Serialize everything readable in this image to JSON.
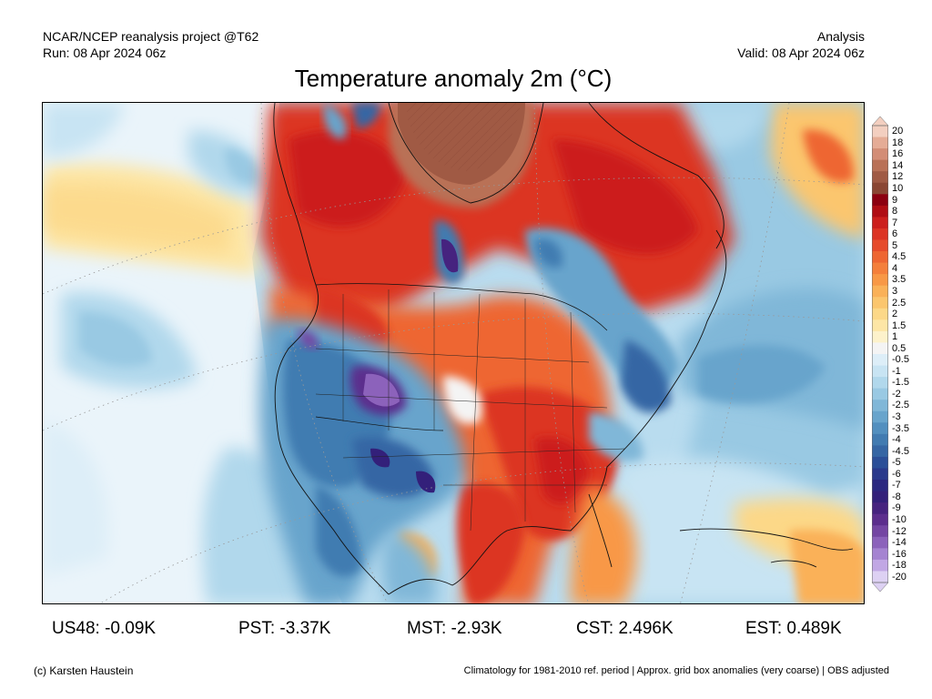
{
  "header": {
    "source_line": "NCAR/NCEP reanalysis project @T62",
    "run_line": "Run: 08 Apr 2024 06z",
    "type_line": "Analysis",
    "valid_line": "Valid: 08 Apr 2024 06z"
  },
  "title": "Temperature anomaly 2m (°C)",
  "colorbar": {
    "labels": [
      "20",
      "18",
      "16",
      "14",
      "12",
      "10",
      "9",
      "8",
      "7",
      "6",
      "5",
      "4.5",
      "4",
      "3.5",
      "3",
      "2.5",
      "2",
      "1.5",
      "1",
      "0.5",
      "-0.5",
      "-1",
      "-1.5",
      "-2",
      "-2.5",
      "-3",
      "-3.5",
      "-4",
      "-4.5",
      "-5",
      "-6",
      "-7",
      "-8",
      "-9",
      "-10",
      "-12",
      "-14",
      "-16",
      "-18",
      "-20"
    ],
    "colors": [
      "#f3cfc0",
      "#e5ac96",
      "#d38d76",
      "#b97157",
      "#a05a44",
      "#8a4633",
      "#8c0010",
      "#b00d14",
      "#cc1f1d",
      "#dc3424",
      "#e64b2b",
      "#ee6632",
      "#f47f3b",
      "#f89846",
      "#fab158",
      "#fbc66e",
      "#fcd888",
      "#fde6a6",
      "#fdf2cb",
      "#f4f4f4",
      "#ddeef8",
      "#c8e4f3",
      "#b1d8ec",
      "#99c9e3",
      "#80b7d8",
      "#68a4cc",
      "#528fbf",
      "#417bb1",
      "#3566a4",
      "#2b4f98",
      "#2a3a8c",
      "#2b2880",
      "#33207a",
      "#46237f",
      "#5c2e8d",
      "#7446a3",
      "#8c62bb",
      "#a583d1",
      "#c1a7e4",
      "#ddd1f3"
    ]
  },
  "map": {
    "colors": {
      "ocean_neutral": "#b9dcef",
      "anomaly_warm_extreme": "#a05a44",
      "anomaly_warm": "#cc1f1d",
      "anomaly_mild": "#f47f3b",
      "anomaly_neutral": "#f4f4f4",
      "anomaly_cool": "#68a4cc",
      "anomaly_cold": "#2b4f98",
      "anomaly_very_cold": "#5c2e8d"
    }
  },
  "stats": [
    {
      "label": "US48: -0.09K"
    },
    {
      "label": "PST: -3.37K"
    },
    {
      "label": "MST: -2.93K"
    },
    {
      "label": "CST: 2.496K"
    },
    {
      "label": "EST: 0.489K"
    }
  ],
  "footer": {
    "credit": "(c) Karsten Haustein",
    "notes": "Climatology for 1981-2010 ref. period | Approx. grid box anomalies (very coarse) | OBS adjusted"
  }
}
